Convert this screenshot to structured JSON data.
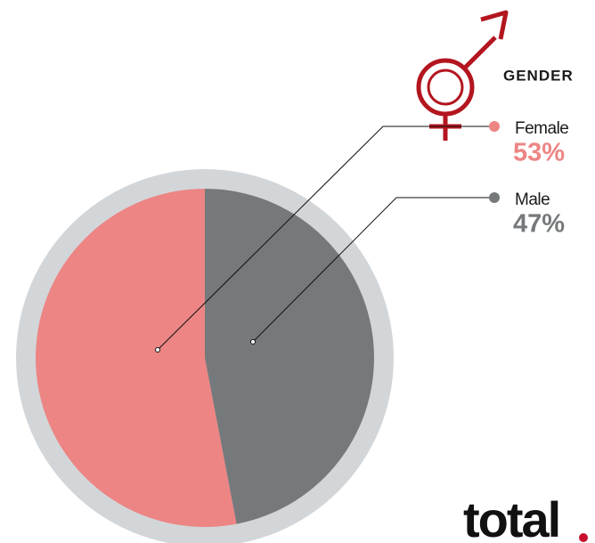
{
  "chart_data": {
    "type": "pie",
    "title": "GENDER",
    "categories": [
      "Female",
      "Male"
    ],
    "values": [
      53,
      47
    ],
    "value_labels": [
      "53%",
      "47%"
    ],
    "colors": [
      "#ec8584",
      "#76797b"
    ]
  },
  "logo": "total"
}
